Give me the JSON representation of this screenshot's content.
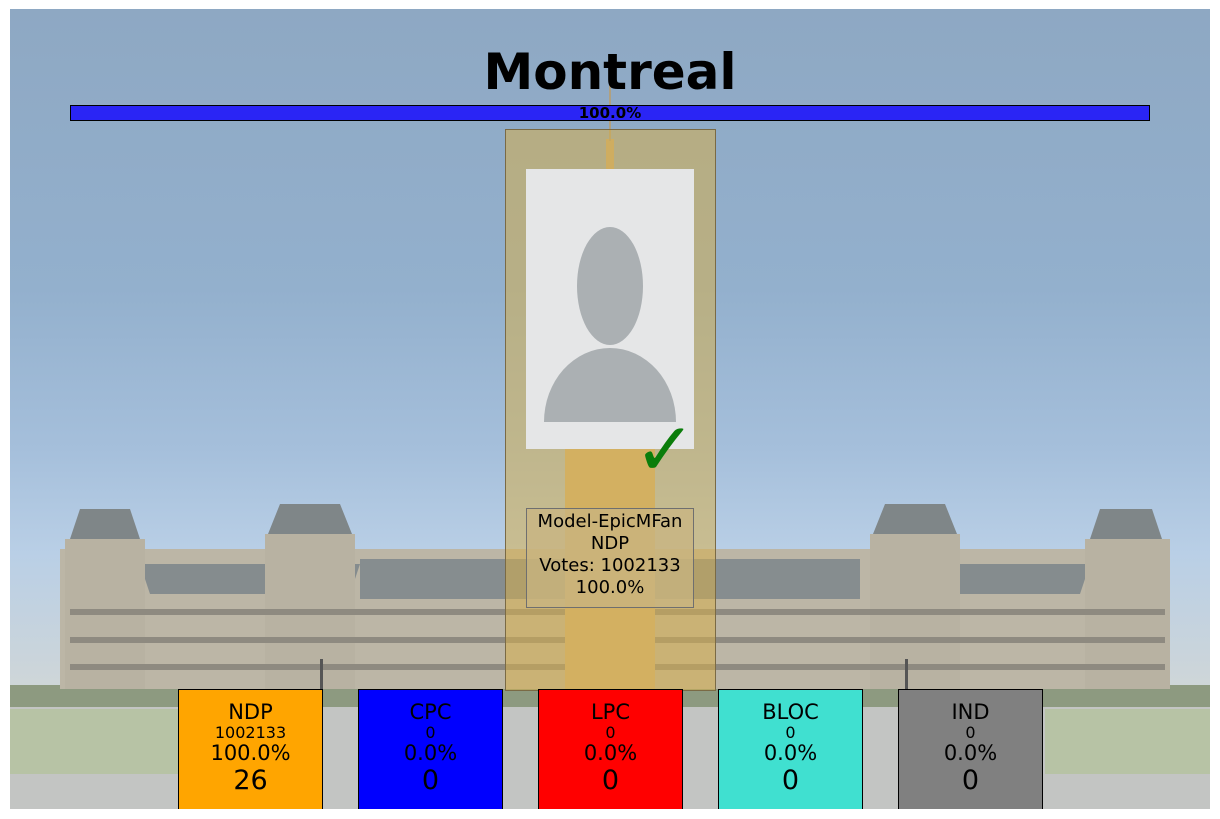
{
  "riding": {
    "name": "Montreal"
  },
  "progress": {
    "reported_fraction": 1.0,
    "label": "100.0%"
  },
  "winner": {
    "name": "Model-EpicMFan",
    "party": "NDP",
    "votes_line": "Votes: 1002133",
    "share": "100.0%",
    "photo_icon": "person-placeholder-icon",
    "winner_icon": "checkmark-icon"
  },
  "parties": [
    {
      "name": "NDP",
      "votes": "1002133",
      "share": "100.0%",
      "seats": "26",
      "color": "#ffa500"
    },
    {
      "name": "CPC",
      "votes": "0",
      "share": "0.0%",
      "seats": "0",
      "color": "#0000ff"
    },
    {
      "name": "LPC",
      "votes": "0",
      "share": "0.0%",
      "seats": "0",
      "color": "#ff0000"
    },
    {
      "name": "BLOC",
      "votes": "0",
      "share": "0.0%",
      "seats": "0",
      "color": "#40e0d0"
    },
    {
      "name": "IND",
      "votes": "0",
      "share": "0.0%",
      "seats": "0",
      "color": "#808080"
    }
  ],
  "colors": {
    "progress_fill": "#2a25f5",
    "check": "#0b7d0b"
  }
}
